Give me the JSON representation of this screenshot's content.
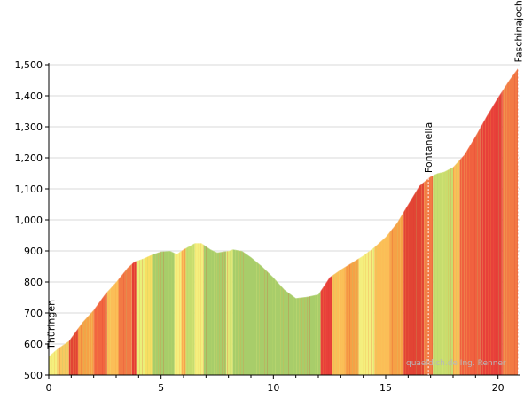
{
  "chart_data": {
    "type": "area",
    "title": "",
    "xlabel": "",
    "ylabel": "",
    "xlim": [
      0,
      21
    ],
    "ylim": [
      500,
      1500
    ],
    "x_ticks": [
      0,
      5,
      10,
      15,
      20
    ],
    "x_tick_labels": [
      "0",
      "5",
      "10",
      "15",
      "20"
    ],
    "y_ticks": [
      500,
      600,
      700,
      800,
      900,
      1000,
      1100,
      1200,
      1300,
      1400,
      1500
    ],
    "y_tick_labels": [
      "500",
      "600",
      "700",
      "800",
      "900",
      "1,000",
      "1,100",
      "1,200",
      "1,300",
      "1,400",
      "1,500"
    ],
    "grid": "horizontal",
    "series": [
      {
        "x": [
          0,
          0.4,
          0.9,
          1.5,
          2.0,
          2.5,
          3.0,
          3.5,
          3.8,
          4.2,
          4.6,
          5.0,
          5.4,
          5.7,
          6.0,
          6.5,
          6.8,
          7.2,
          7.5,
          8.0,
          8.2,
          8.6,
          9.0,
          9.5,
          10.0,
          10.5,
          11.0,
          11.5,
          12.0,
          12.5,
          13.0,
          13.5,
          14.0,
          14.5,
          15.0,
          15.5,
          16.0,
          16.5,
          17.0,
          17.3,
          17.6,
          18.0,
          18.5,
          19.0,
          19.5,
          20.0,
          20.5,
          20.9
        ],
        "y": [
          560,
          585,
          610,
          670,
          710,
          760,
          800,
          845,
          865,
          875,
          888,
          898,
          900,
          890,
          905,
          925,
          925,
          905,
          895,
          900,
          905,
          900,
          880,
          850,
          815,
          775,
          748,
          752,
          760,
          815,
          840,
          862,
          885,
          912,
          945,
          990,
          1050,
          1110,
          1140,
          1150,
          1155,
          1170,
          1210,
          1270,
          1335,
          1395,
          1450,
          1490
        ]
      }
    ],
    "gradient_colors": [
      "#a8cd6a",
      "#c4dc6e",
      "#eef080",
      "#fad060",
      "#f9a042",
      "#f56d47",
      "#e03b32"
    ],
    "slope_segments": [
      {
        "x": [
          0.0,
          0.4
        ],
        "color": "#f4ef7e"
      },
      {
        "x": [
          0.4,
          0.9
        ],
        "color": "#f8c860"
      },
      {
        "x": [
          0.9,
          1.3
        ],
        "color": "#e24434"
      },
      {
        "x": [
          1.3,
          2.0
        ],
        "color": "#f6a146"
      },
      {
        "x": [
          2.0,
          2.6
        ],
        "color": "#f26640"
      },
      {
        "x": [
          2.6,
          3.1
        ],
        "color": "#fbbe57"
      },
      {
        "x": [
          3.1,
          3.7
        ],
        "color": "#f27a45"
      },
      {
        "x": [
          3.7,
          3.9
        ],
        "color": "#e53c34"
      },
      {
        "x": [
          3.9,
          4.3
        ],
        "color": "#eaf07a"
      },
      {
        "x": [
          4.3,
          4.6
        ],
        "color": "#f8de62"
      },
      {
        "x": [
          4.6,
          5.6
        ],
        "color": "#a8cd6a"
      },
      {
        "x": [
          5.6,
          5.9
        ],
        "color": "#f4ef7e"
      },
      {
        "x": [
          5.9,
          6.1
        ],
        "color": "#fbbe57"
      },
      {
        "x": [
          6.1,
          6.5
        ],
        "color": "#c7dd6e"
      },
      {
        "x": [
          6.5,
          6.9
        ],
        "color": "#f4ef7e"
      },
      {
        "x": [
          6.9,
          7.9
        ],
        "color": "#a8cd6a"
      },
      {
        "x": [
          7.9,
          8.2
        ],
        "color": "#dfe876"
      },
      {
        "x": [
          8.2,
          12.1
        ],
        "color": "#a8cd6a"
      },
      {
        "x": [
          12.1,
          12.6
        ],
        "color": "#e8403a"
      },
      {
        "x": [
          12.6,
          13.2
        ],
        "color": "#fbbe57"
      },
      {
        "x": [
          13.2,
          13.8
        ],
        "color": "#f6a146"
      },
      {
        "x": [
          13.8,
          14.5
        ],
        "color": "#f4ef7e"
      },
      {
        "x": [
          14.5,
          15.2
        ],
        "color": "#fbbe57"
      },
      {
        "x": [
          15.2,
          15.8
        ],
        "color": "#f6a146"
      },
      {
        "x": [
          15.8,
          16.7
        ],
        "color": "#e24434"
      },
      {
        "x": [
          16.7,
          17.1
        ],
        "color": "#f27a45"
      },
      {
        "x": [
          17.1,
          18.0
        ],
        "color": "#c7dd6e"
      },
      {
        "x": [
          18.0,
          18.3
        ],
        "color": "#fbbe57"
      },
      {
        "x": [
          18.3,
          19.2
        ],
        "color": "#f0613f"
      },
      {
        "x": [
          19.2,
          20.2
        ],
        "color": "#e8403a"
      },
      {
        "x": [
          20.2,
          21.0
        ],
        "color": "#f27a45"
      }
    ],
    "annotations": [
      {
        "label": "Thüringen",
        "x": 0.1
      },
      {
        "label": "Fontanella",
        "x": 16.9
      },
      {
        "label": "Faschinajoch",
        "x": 20.9
      }
    ],
    "watermark": "quaeldich.de Ing. Renner"
  }
}
